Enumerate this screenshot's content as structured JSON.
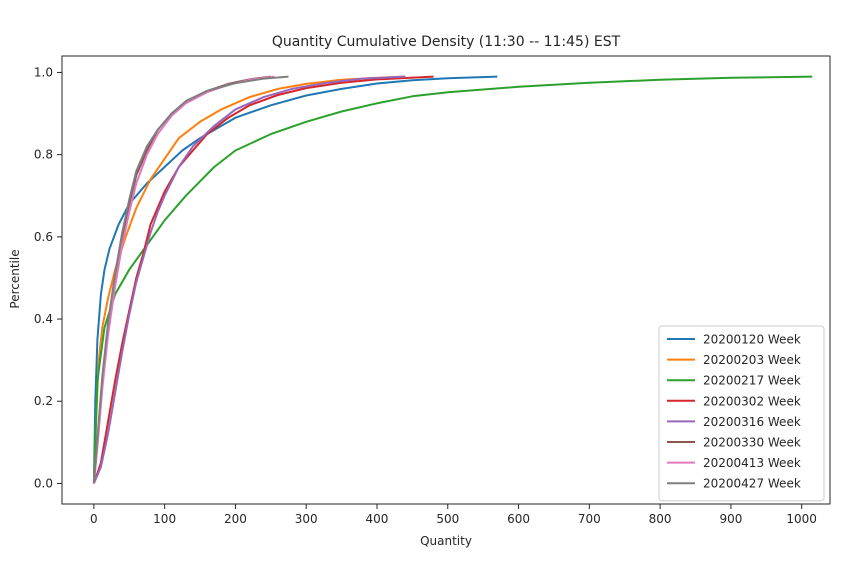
{
  "chart_data": {
    "type": "line",
    "title": "Quantity Cumulative Density  (11:30 -- 11:45) EST",
    "xlabel": "Quantity",
    "ylabel": "Percentile",
    "xlim": [
      -45,
      1040
    ],
    "ylim": [
      -0.05,
      1.04
    ],
    "xticks": [
      0,
      100,
      200,
      300,
      400,
      500,
      600,
      700,
      800,
      900,
      1000
    ],
    "yticks": [
      0.0,
      0.2,
      0.4,
      0.6,
      0.8,
      1.0
    ],
    "xtick_labels": [
      "0",
      "100",
      "200",
      "300",
      "400",
      "500",
      "600",
      "700",
      "800",
      "900",
      "1000"
    ],
    "ytick_labels": [
      "0.0",
      "0.2",
      "0.4",
      "0.6",
      "0.8",
      "1.0"
    ],
    "grid": false,
    "legend_position": "lower-right",
    "series": [
      {
        "name": "20200120 Week",
        "color": "#1f77b4",
        "points": [
          [
            0,
            0
          ],
          [
            2,
            0.2
          ],
          [
            5,
            0.35
          ],
          [
            10,
            0.46
          ],
          [
            15,
            0.52
          ],
          [
            22,
            0.57
          ],
          [
            35,
            0.63
          ],
          [
            50,
            0.68
          ],
          [
            75,
            0.73
          ],
          [
            100,
            0.77
          ],
          [
            125,
            0.81
          ],
          [
            150,
            0.84
          ],
          [
            200,
            0.89
          ],
          [
            250,
            0.92
          ],
          [
            300,
            0.944
          ],
          [
            350,
            0.96
          ],
          [
            400,
            0.973
          ],
          [
            450,
            0.981
          ],
          [
            500,
            0.986
          ],
          [
            570,
            0.99
          ]
        ]
      },
      {
        "name": "20200203 Week",
        "color": "#ff7f0e",
        "points": [
          [
            0,
            0
          ],
          [
            3,
            0.15
          ],
          [
            7,
            0.3
          ],
          [
            12,
            0.38
          ],
          [
            20,
            0.45
          ],
          [
            30,
            0.52
          ],
          [
            45,
            0.6
          ],
          [
            60,
            0.67
          ],
          [
            80,
            0.74
          ],
          [
            100,
            0.79
          ],
          [
            120,
            0.84
          ],
          [
            150,
            0.88
          ],
          [
            180,
            0.91
          ],
          [
            220,
            0.94
          ],
          [
            260,
            0.96
          ],
          [
            300,
            0.972
          ],
          [
            350,
            0.982
          ],
          [
            400,
            0.987
          ],
          [
            440,
            0.99
          ]
        ]
      },
      {
        "name": "20200217 Week",
        "color": "#2ca02c",
        "points": [
          [
            0,
            0
          ],
          [
            5,
            0.25
          ],
          [
            15,
            0.38
          ],
          [
            30,
            0.46
          ],
          [
            50,
            0.52
          ],
          [
            75,
            0.58
          ],
          [
            100,
            0.64
          ],
          [
            130,
            0.7
          ],
          [
            170,
            0.77
          ],
          [
            200,
            0.81
          ],
          [
            250,
            0.85
          ],
          [
            300,
            0.88
          ],
          [
            350,
            0.905
          ],
          [
            400,
            0.925
          ],
          [
            450,
            0.942
          ],
          [
            500,
            0.952
          ],
          [
            600,
            0.965
          ],
          [
            700,
            0.975
          ],
          [
            800,
            0.982
          ],
          [
            900,
            0.987
          ],
          [
            1015,
            0.99
          ]
        ]
      },
      {
        "name": "20200302 Week",
        "color": "#d62728",
        "points": [
          [
            0,
            0
          ],
          [
            10,
            0.05
          ],
          [
            20,
            0.15
          ],
          [
            30,
            0.25
          ],
          [
            40,
            0.34
          ],
          [
            50,
            0.42
          ],
          [
            60,
            0.5
          ],
          [
            70,
            0.56
          ],
          [
            80,
            0.63
          ],
          [
            100,
            0.71
          ],
          [
            120,
            0.77
          ],
          [
            140,
            0.81
          ],
          [
            160,
            0.85
          ],
          [
            190,
            0.89
          ],
          [
            220,
            0.92
          ],
          [
            260,
            0.945
          ],
          [
            300,
            0.962
          ],
          [
            350,
            0.975
          ],
          [
            400,
            0.983
          ],
          [
            480,
            0.99
          ]
        ]
      },
      {
        "name": "20200316 Week",
        "color": "#9467bd",
        "points": [
          [
            0,
            0
          ],
          [
            10,
            0.04
          ],
          [
            20,
            0.12
          ],
          [
            30,
            0.22
          ],
          [
            40,
            0.32
          ],
          [
            50,
            0.41
          ],
          [
            60,
            0.49
          ],
          [
            70,
            0.55
          ],
          [
            80,
            0.61
          ],
          [
            90,
            0.66
          ],
          [
            100,
            0.7
          ],
          [
            120,
            0.77
          ],
          [
            140,
            0.82
          ],
          [
            170,
            0.87
          ],
          [
            200,
            0.91
          ],
          [
            240,
            0.94
          ],
          [
            280,
            0.96
          ],
          [
            330,
            0.975
          ],
          [
            380,
            0.985
          ],
          [
            440,
            0.99
          ]
        ]
      },
      {
        "name": "20200330 Week",
        "color": "#8c564b",
        "points": [
          [
            0,
            0
          ],
          [
            5,
            0.1
          ],
          [
            12,
            0.25
          ],
          [
            20,
            0.38
          ],
          [
            30,
            0.5
          ],
          [
            40,
            0.6
          ],
          [
            50,
            0.68
          ],
          [
            60,
            0.75
          ],
          [
            75,
            0.81
          ],
          [
            90,
            0.86
          ],
          [
            110,
            0.9
          ],
          [
            130,
            0.93
          ],
          [
            160,
            0.955
          ],
          [
            190,
            0.972
          ],
          [
            220,
            0.983
          ],
          [
            250,
            0.99
          ]
        ]
      },
      {
        "name": "20200413 Week",
        "color": "#e377c2",
        "points": [
          [
            0,
            0
          ],
          [
            5,
            0.09
          ],
          [
            12,
            0.23
          ],
          [
            20,
            0.36
          ],
          [
            30,
            0.48
          ],
          [
            40,
            0.58
          ],
          [
            50,
            0.66
          ],
          [
            60,
            0.73
          ],
          [
            75,
            0.8
          ],
          [
            90,
            0.85
          ],
          [
            110,
            0.895
          ],
          [
            130,
            0.925
          ],
          [
            160,
            0.952
          ],
          [
            190,
            0.97
          ],
          [
            220,
            0.982
          ],
          [
            255,
            0.99
          ]
        ]
      },
      {
        "name": "20200427 Week",
        "color": "#7f7f7f",
        "points": [
          [
            0,
            0
          ],
          [
            5,
            0.11
          ],
          [
            12,
            0.26
          ],
          [
            20,
            0.39
          ],
          [
            30,
            0.51
          ],
          [
            40,
            0.61
          ],
          [
            50,
            0.69
          ],
          [
            60,
            0.76
          ],
          [
            75,
            0.82
          ],
          [
            90,
            0.86
          ],
          [
            110,
            0.9
          ],
          [
            130,
            0.93
          ],
          [
            160,
            0.955
          ],
          [
            200,
            0.974
          ],
          [
            240,
            0.985
          ],
          [
            275,
            0.99
          ]
        ]
      }
    ]
  }
}
